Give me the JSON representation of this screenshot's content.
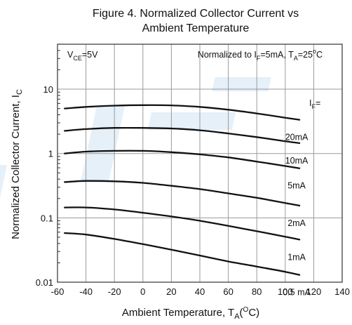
{
  "chart_data": {
    "type": "line",
    "title_line1": "Figure 4. Normalized Collector Current vs",
    "title_line2": "Ambient Temperature",
    "ylabel_main": "Normalized Collector Current, I",
    "ylabel_sub": "C",
    "xlabel_main": "Ambient Temperature, T",
    "xlabel_sub": "A",
    "xlabel_paren_open": "(",
    "xlabel_sup": "O",
    "xlabel_tail": "C)",
    "xlim": [
      -60,
      140
    ],
    "ylim": [
      0.01,
      50
    ],
    "yscale": "log",
    "grid": true,
    "x_ticks": [
      "-60",
      "-40",
      "-20",
      "0",
      "20",
      "40",
      "60",
      "80",
      "100",
      "120",
      "140"
    ],
    "x_tick_values": [
      -60,
      -40,
      -20,
      0,
      20,
      40,
      60,
      80,
      100,
      120,
      140
    ],
    "y_ticks": [
      "0.01",
      "0.1",
      "1",
      "10"
    ],
    "y_tick_values": [
      0.01,
      0.1,
      1,
      10
    ],
    "annotation_vce": {
      "main": "V",
      "sub": "CE",
      "tail": "=5V"
    },
    "annotation_norm": {
      "t1": "Normalized to I",
      "s1": "F",
      "t2": "=5mA, T",
      "s2": "A",
      "t3": "=25",
      "sup": "o",
      "t4": "C"
    },
    "legend_header": {
      "main": "I",
      "sub": "F",
      "tail": "="
    },
    "series": [
      {
        "name": "20mA",
        "x": [
          -55,
          -40,
          -20,
          0,
          20,
          40,
          60,
          80,
          100,
          110
        ],
        "y": [
          5.0,
          5.3,
          5.55,
          5.65,
          5.6,
          5.3,
          4.8,
          4.2,
          3.6,
          3.35
        ]
      },
      {
        "name": "10mA",
        "x": [
          -55,
          -40,
          -20,
          0,
          20,
          40,
          60,
          80,
          100,
          110
        ],
        "y": [
          2.25,
          2.4,
          2.5,
          2.5,
          2.45,
          2.3,
          2.05,
          1.8,
          1.55,
          1.45
        ]
      },
      {
        "name": "5mA",
        "x": [
          -55,
          -40,
          -20,
          0,
          20,
          40,
          60,
          80,
          100,
          110
        ],
        "y": [
          1.0,
          1.07,
          1.1,
          1.1,
          1.05,
          0.97,
          0.87,
          0.75,
          0.64,
          0.59
        ]
      },
      {
        "name": "2mA",
        "x": [
          -55,
          -40,
          -20,
          0,
          20,
          40,
          60,
          80,
          100,
          110
        ],
        "y": [
          0.36,
          0.375,
          0.37,
          0.35,
          0.315,
          0.28,
          0.24,
          0.205,
          0.17,
          0.155
        ]
      },
      {
        "name": "1mA",
        "x": [
          -55,
          -40,
          -20,
          0,
          20,
          40,
          60,
          80,
          100,
          110
        ],
        "y": [
          0.145,
          0.145,
          0.135,
          0.12,
          0.105,
          0.09,
          0.075,
          0.062,
          0.051,
          0.046
        ]
      },
      {
        "name": "0.5 mA",
        "x": [
          -55,
          -40,
          -20,
          0,
          20,
          40,
          60,
          80,
          100,
          110
        ],
        "y": [
          0.058,
          0.055,
          0.047,
          0.039,
          0.032,
          0.026,
          0.021,
          0.0175,
          0.0145,
          0.013
        ]
      }
    ]
  }
}
